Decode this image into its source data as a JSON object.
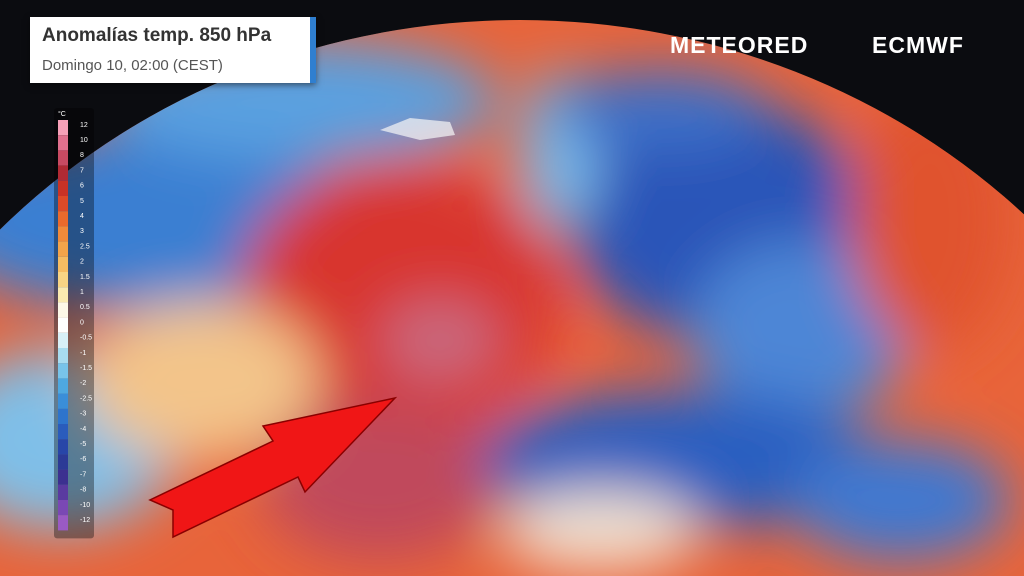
{
  "header": {
    "title": "Anomalías temp. 850 hPa",
    "subtitle": "Domingo 10, 02:00 (CEST)"
  },
  "logos": [
    "METEORED",
    "ECMWF"
  ],
  "legend": {
    "unit": "°C",
    "ticks": [
      12,
      10,
      8,
      7,
      6,
      5,
      4,
      3,
      2.5,
      2,
      1.5,
      1,
      0.5,
      0,
      -0.5,
      -1,
      -1.5,
      -2,
      -2.5,
      -3,
      -4,
      -5,
      -6,
      -7,
      -8,
      -10,
      -12
    ]
  }
}
